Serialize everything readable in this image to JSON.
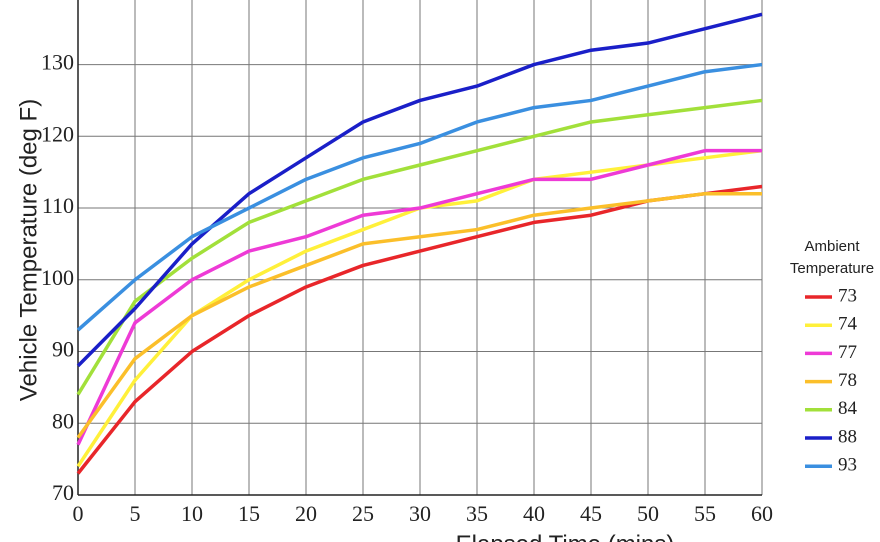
{
  "chart_data": {
    "type": "line",
    "x_label": "Elapsed Time (mins)",
    "y_label": "Vehicle Temperature (deg F)",
    "legend_title": [
      "Ambient",
      "Temperature"
    ],
    "legend_position": "right",
    "grid": true,
    "x": [
      0,
      5,
      10,
      15,
      20,
      25,
      30,
      35,
      40,
      45,
      50,
      55,
      60
    ],
    "xlim": [
      0,
      60
    ],
    "xticks": [
      0,
      5,
      10,
      15,
      20,
      25,
      30,
      35,
      40,
      45,
      50,
      55,
      60
    ],
    "ylim": [
      70,
      139
    ],
    "yticks": [
      70,
      80,
      90,
      100,
      110,
      120,
      130
    ],
    "series": [
      {
        "name": "73",
        "color": "#e8262a",
        "values": [
          73,
          83,
          90,
          95,
          99,
          102,
          104,
          106,
          108,
          109,
          111,
          112,
          113
        ]
      },
      {
        "name": "74",
        "color": "#fff03a",
        "values": [
          74,
          86,
          95,
          100,
          104,
          107,
          110,
          111,
          114,
          115,
          116,
          117,
          118
        ]
      },
      {
        "name": "77",
        "color": "#ee3ad6",
        "values": [
          77,
          94,
          100,
          104,
          106,
          109,
          110,
          112,
          114,
          114,
          116,
          118,
          118
        ]
      },
      {
        "name": "78",
        "color": "#fbbf2a",
        "values": [
          78,
          89,
          95,
          99,
          102,
          105,
          106,
          107,
          109,
          110,
          111,
          112,
          112
        ]
      },
      {
        "name": "84",
        "color": "#a2e03a",
        "values": [
          84,
          97,
          103,
          108,
          111,
          114,
          116,
          118,
          120,
          122,
          123,
          124,
          125
        ]
      },
      {
        "name": "88",
        "color": "#1a1fc8",
        "values": [
          88,
          96,
          105,
          112,
          117,
          122,
          125,
          127,
          130,
          132,
          133,
          135,
          137
        ]
      },
      {
        "name": "93",
        "color": "#3a8fe0",
        "values": [
          93,
          100,
          106,
          110,
          114,
          117,
          119,
          122,
          124,
          125,
          127,
          129,
          130
        ]
      }
    ]
  }
}
